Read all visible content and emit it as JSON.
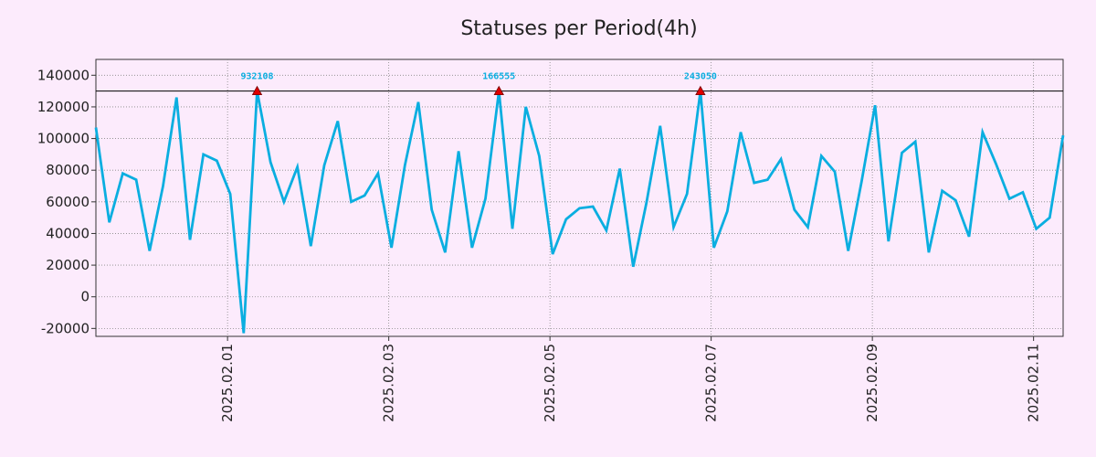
{
  "chart_data": {
    "type": "line",
    "title": "Statuses per Period(4h)",
    "xlabel": "",
    "ylabel": "",
    "ylim": [
      -25000,
      150000
    ],
    "yticks": [
      -20000,
      0,
      20000,
      40000,
      60000,
      80000,
      100000,
      120000,
      140000
    ],
    "ytick_labels": [
      "-20000",
      "0",
      "20000",
      "40000",
      "60000",
      "80000",
      "100000",
      "120000",
      "140000"
    ],
    "x_start": 0,
    "x_end": 72,
    "xtick_positions": [
      9.8,
      21.8,
      33.8,
      45.8,
      57.8,
      69.8
    ],
    "xtick_labels": [
      "2025.02.01",
      "2025.02.03",
      "2025.02.05",
      "2025.02.07",
      "2025.02.09",
      "2025.02.11"
    ],
    "series": [
      {
        "name": "statuses",
        "color": "#0aaee0",
        "values": [
          107000,
          47000,
          78000,
          74000,
          29000,
          70000,
          126000,
          36000,
          90000,
          86000,
          65000,
          -23000,
          130000,
          85000,
          60000,
          82000,
          32000,
          83000,
          111000,
          60000,
          64000,
          78000,
          31000,
          83000,
          123000,
          55000,
          28000,
          92000,
          31000,
          62000,
          130000,
          43000,
          120000,
          89000,
          27000,
          49000,
          56000,
          57000,
          42000,
          81000,
          19000,
          60000,
          108000,
          44000,
          65000,
          130000,
          31000,
          54000,
          104000,
          72000,
          74000,
          87000,
          55000,
          44000,
          89000,
          79000,
          29000,
          73000,
          121000,
          35000,
          91000,
          98000,
          28000,
          67000,
          61000,
          38000,
          104000,
          84000,
          62000,
          66000,
          43000,
          50000,
          102000
        ]
      }
    ],
    "threshold": 130000,
    "threshold_color": "#000000",
    "peaks": [
      {
        "index": 12,
        "value": 130000,
        "label": "932108"
      },
      {
        "index": 30,
        "value": 130000,
        "label": "166555"
      },
      {
        "index": 45,
        "value": 130000,
        "label": "243050"
      }
    ],
    "peak_label_color": "#0aaee0",
    "peak_marker_color": "#e00000",
    "grid": true,
    "legend": "none"
  }
}
